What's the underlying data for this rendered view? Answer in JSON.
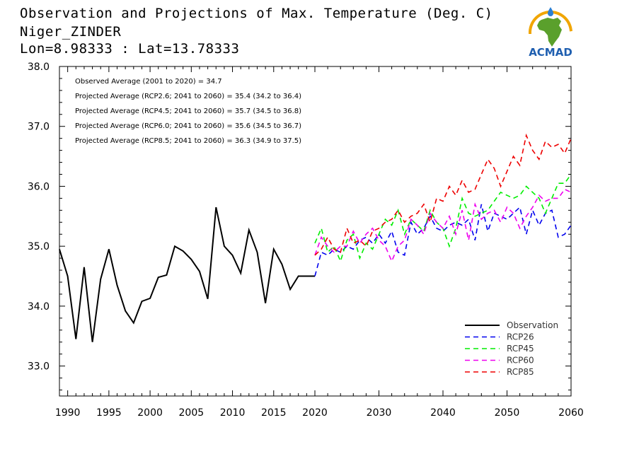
{
  "header": {
    "title": "Observation and Projections of Max. Temperature (Deg. C)",
    "location": "Niger_ZINDER",
    "coords": "Lon=8.98333 : Lat=13.78333"
  },
  "logo": {
    "text": "ACMAD",
    "icon": "africa-sun-logo-icon",
    "colors": {
      "africa": "#5aa02c",
      "sun": "#f0a500",
      "drop": "#2a7fd4",
      "text": "#1f5fb0"
    }
  },
  "annotations": [
    "Observed Average (2001 to 2020) = 34.7",
    "Projected Average (RCP2.6; 2041 to 2060) = 35.4 (34.2 to 36.4)",
    "Projected Average (RCP4.5; 2041 to 2060) = 35.7 (34.5 to 36.8)",
    "Projected Average (RCP6.0; 2041 to 2060) = 35.6 (34.5 to 36.7)",
    "Projected Average (RCP8.5; 2041 to 2060) = 36.3 (34.9 to 37.5)"
  ],
  "chart_data": {
    "type": "line",
    "title": "Observation and Projections of Max. Temperature (Deg. C)",
    "xlabel": "",
    "ylabel": "",
    "ylim": [
      32.5,
      38.0
    ],
    "yticks": [
      33.0,
      34.0,
      35.0,
      36.0,
      37.0,
      38.0
    ],
    "ytick_labels": [
      "33.0",
      "34.0",
      "35.0",
      "36.0",
      "37.0",
      "38.0"
    ],
    "xticks_major": [
      1990,
      1995,
      2000,
      2005,
      2010,
      2015,
      2020,
      2030,
      2040,
      2050,
      2060
    ],
    "xtick_labels": [
      "1990",
      "1995",
      "2000",
      "2005",
      "2010",
      "2015",
      "2020",
      "2030",
      "2040",
      "2050",
      "2060"
    ],
    "x_axis_note": "broken scale: 1990-2020 then 2020-2060 compressed",
    "legend_position": "bottom-right",
    "grid": false,
    "series": [
      {
        "name": "Observation",
        "color": "#000000",
        "dash": "solid",
        "x": [
          1989,
          1990,
          1991,
          1992,
          1993,
          1994,
          1995,
          1996,
          1997,
          1998,
          1999,
          2000,
          2001,
          2002,
          2003,
          2004,
          2005,
          2006,
          2007,
          2008,
          2009,
          2010,
          2011,
          2012,
          2013,
          2014,
          2015,
          2016,
          2017,
          2018,
          2019,
          2020
        ],
        "values": [
          34.95,
          34.5,
          33.45,
          34.65,
          33.4,
          34.45,
          34.95,
          34.35,
          33.92,
          33.72,
          34.08,
          34.13,
          34.48,
          34.52,
          35.0,
          34.92,
          34.78,
          34.58,
          34.12,
          35.65,
          35.0,
          34.85,
          34.55,
          35.27,
          34.9,
          34.05,
          34.95,
          34.7,
          34.28,
          34.5,
          34.5,
          34.5
        ]
      },
      {
        "name": "RCP26",
        "color": "#0000ee",
        "dash": "dashed",
        "x": [
          2020,
          2021,
          2022,
          2023,
          2024,
          2025,
          2026,
          2027,
          2028,
          2029,
          2030,
          2031,
          2032,
          2033,
          2034,
          2035,
          2036,
          2037,
          2038,
          2039,
          2040,
          2041,
          2042,
          2043,
          2044,
          2045,
          2046,
          2047,
          2048,
          2049,
          2050,
          2051,
          2052,
          2053,
          2054,
          2055,
          2056,
          2057,
          2058,
          2059,
          2060
        ],
        "values": [
          34.5,
          34.9,
          34.85,
          34.95,
          34.9,
          35.0,
          34.95,
          35.1,
          35.15,
          35.05,
          35.2,
          35.05,
          35.25,
          34.9,
          34.85,
          35.4,
          35.2,
          35.3,
          35.5,
          35.3,
          35.25,
          35.35,
          35.4,
          35.35,
          35.45,
          35.1,
          35.7,
          35.25,
          35.55,
          35.5,
          35.45,
          35.55,
          35.65,
          35.2,
          35.6,
          35.35,
          35.55,
          35.6,
          35.15,
          35.2,
          35.35
        ]
      },
      {
        "name": "RCP45",
        "color": "#00ee00",
        "dash": "dashed",
        "x": [
          2020,
          2021,
          2022,
          2023,
          2024,
          2025,
          2026,
          2027,
          2028,
          2029,
          2030,
          2031,
          2032,
          2033,
          2034,
          2035,
          2036,
          2037,
          2038,
          2039,
          2040,
          2041,
          2042,
          2043,
          2044,
          2045,
          2046,
          2047,
          2048,
          2049,
          2050,
          2051,
          2052,
          2053,
          2054,
          2055,
          2056,
          2057,
          2058,
          2059,
          2060
        ],
        "values": [
          35.05,
          35.3,
          34.9,
          35.0,
          34.75,
          35.1,
          35.2,
          34.8,
          35.05,
          34.95,
          35.2,
          35.45,
          35.35,
          35.6,
          35.2,
          35.45,
          35.35,
          35.25,
          35.6,
          35.4,
          35.3,
          35.0,
          35.3,
          35.8,
          35.55,
          35.5,
          35.55,
          35.6,
          35.75,
          35.9,
          35.85,
          35.8,
          35.85,
          36.0,
          35.9,
          35.8,
          35.55,
          35.8,
          36.05,
          36.05,
          36.2
        ]
      },
      {
        "name": "RCP60",
        "color": "#ee00ee",
        "dash": "dashed",
        "x": [
          2020,
          2021,
          2022,
          2023,
          2024,
          2025,
          2026,
          2027,
          2028,
          2029,
          2030,
          2031,
          2032,
          2033,
          2034,
          2035,
          2036,
          2037,
          2038,
          2039,
          2040,
          2041,
          2042,
          2043,
          2044,
          2045,
          2046,
          2047,
          2048,
          2049,
          2050,
          2051,
          2052,
          2053,
          2054,
          2055,
          2056,
          2057,
          2058,
          2059,
          2060
        ],
        "values": [
          34.85,
          35.15,
          35.0,
          34.9,
          35.0,
          35.0,
          35.25,
          35.05,
          35.2,
          35.3,
          35.1,
          35.0,
          34.75,
          35.0,
          35.1,
          35.45,
          35.35,
          35.2,
          35.55,
          35.4,
          35.3,
          35.5,
          35.2,
          35.6,
          35.1,
          35.7,
          35.45,
          35.55,
          35.6,
          35.4,
          35.65,
          35.55,
          35.3,
          35.5,
          35.65,
          35.85,
          35.75,
          35.8,
          35.8,
          35.95,
          35.9
        ]
      },
      {
        "name": "RCP85",
        "color": "#ee0000",
        "dash": "dashed",
        "x": [
          2020,
          2021,
          2022,
          2023,
          2024,
          2025,
          2026,
          2027,
          2028,
          2029,
          2030,
          2031,
          2032,
          2033,
          2034,
          2035,
          2036,
          2037,
          2038,
          2039,
          2040,
          2041,
          2042,
          2043,
          2044,
          2045,
          2046,
          2047,
          2048,
          2049,
          2050,
          2051,
          2052,
          2053,
          2054,
          2055,
          2056,
          2057,
          2058,
          2059,
          2060
        ],
        "values": [
          34.85,
          34.95,
          35.15,
          34.95,
          34.9,
          35.3,
          35.05,
          35.1,
          35.0,
          35.25,
          35.3,
          35.4,
          35.45,
          35.6,
          35.4,
          35.5,
          35.55,
          35.7,
          35.4,
          35.8,
          35.75,
          36.0,
          35.85,
          36.1,
          35.9,
          35.95,
          36.2,
          36.45,
          36.3,
          36.0,
          36.25,
          36.5,
          36.35,
          36.85,
          36.6,
          36.45,
          36.75,
          36.65,
          36.7,
          36.55,
          36.8
        ]
      }
    ]
  }
}
